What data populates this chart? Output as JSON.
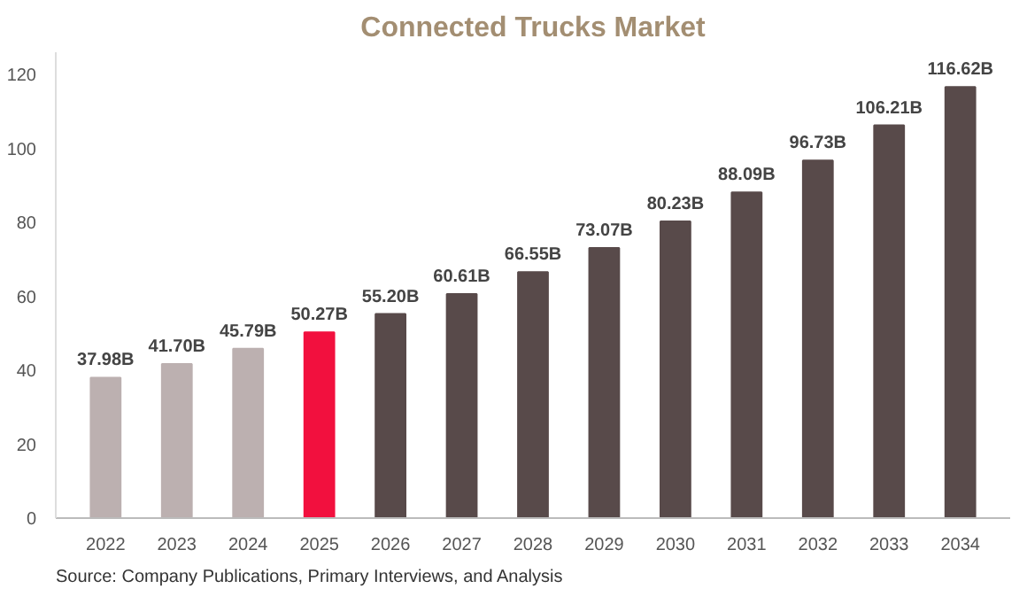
{
  "chart_data": {
    "type": "bar",
    "title": "Connected Trucks Market",
    "categories": [
      "2022",
      "2023",
      "2024",
      "2025",
      "2026",
      "2027",
      "2028",
      "2029",
      "2030",
      "2031",
      "2032",
      "2033",
      "2034"
    ],
    "values": [
      37.98,
      41.7,
      45.79,
      50.27,
      55.2,
      60.61,
      66.55,
      73.07,
      80.23,
      88.09,
      96.73,
      106.21,
      116.62
    ],
    "value_labels": [
      "37.98B",
      "41.70B",
      "45.79B",
      "50.27B",
      "55.20B",
      "60.61B",
      "66.55B",
      "73.07B",
      "80.23B",
      "88.09B",
      "96.73B",
      "106.21B",
      "116.62B"
    ],
    "colors": [
      "#bcb0b0",
      "#bcb0b0",
      "#bcb0b0",
      "#f2103e",
      "#584a4a",
      "#584a4a",
      "#584a4a",
      "#584a4a",
      "#584a4a",
      "#584a4a",
      "#584a4a",
      "#584a4a",
      "#584a4a"
    ],
    "ylim": [
      0,
      126
    ],
    "yticks": [
      0,
      20,
      40,
      60,
      80,
      100,
      120
    ],
    "grid": false,
    "annotations": [
      "Source: Company Publications, Primary Interviews, and Analysis"
    ]
  }
}
